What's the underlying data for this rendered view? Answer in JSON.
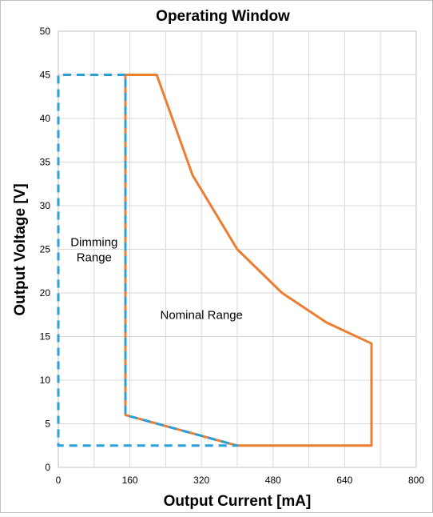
{
  "chart_data": {
    "type": "line",
    "title": "Operating Window",
    "xlabel": "Output Current [mA]",
    "ylabel": "Output Voltage [V]",
    "xlim": [
      0,
      800
    ],
    "ylim": [
      0,
      50
    ],
    "x_ticks": [
      "0",
      "160",
      "320",
      "480",
      "640",
      "800"
    ],
    "y_ticks": [
      "0",
      "5",
      "10",
      "15",
      "20",
      "25",
      "30",
      "35",
      "40",
      "45",
      "50"
    ],
    "grid": true,
    "colors": {
      "nominal": "#ed7d31",
      "dimming": "#2aa0da",
      "grid": "#d9d9d9",
      "frame": "#bfbfbf"
    },
    "series": [
      {
        "style": "solid",
        "color": "#ed7d31",
        "x": [
          150,
          220,
          300,
          400,
          500,
          600,
          700,
          700,
          400,
          150,
          150
        ],
        "y": [
          45,
          45,
          33.5,
          25,
          20,
          16.6,
          14.2,
          2.5,
          2.5,
          6,
          45
        ]
      },
      {
        "style": "dashed",
        "color": "#2aa0da",
        "x": [
          150,
          0,
          0,
          400,
          150,
          150
        ],
        "y": [
          45,
          45,
          2.5,
          2.5,
          6,
          45
        ]
      }
    ],
    "annotations": [
      {
        "text": "Dimming\nRange",
        "x": 80,
        "y": 25
      },
      {
        "text": "Nominal Range",
        "x": 320,
        "y": 17.5
      }
    ]
  }
}
